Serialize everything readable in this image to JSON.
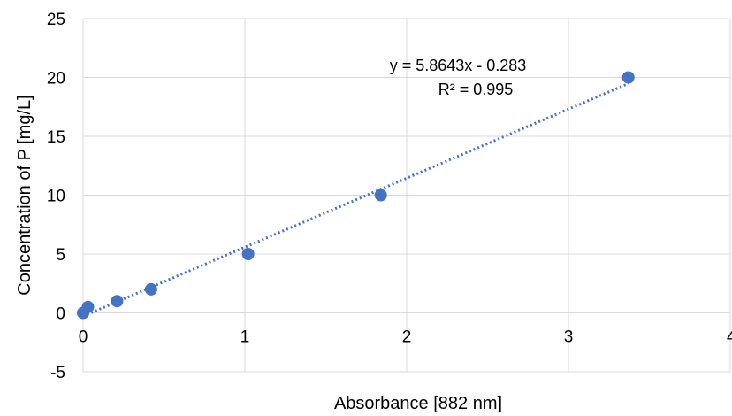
{
  "chart_data": {
    "type": "scatter",
    "title": "",
    "xlabel": "Absorbance [882 nm]",
    "ylabel": "Concentration of P [mg/L]",
    "xlim": [
      0,
      4
    ],
    "ylim": [
      -5,
      25
    ],
    "x_ticks": [
      "0",
      "1",
      "2",
      "3",
      "4"
    ],
    "y_ticks": [
      "-5",
      "0",
      "5",
      "10",
      "15",
      "20",
      "25"
    ],
    "grid": true,
    "legend": "none",
    "series": [
      {
        "color": "#4472C4",
        "points": [
          {
            "x": 0.0,
            "y": 0
          },
          {
            "x": 0.03,
            "y": 0.5
          },
          {
            "x": 0.21,
            "y": 1
          },
          {
            "x": 0.42,
            "y": 2
          },
          {
            "x": 1.02,
            "y": 5
          },
          {
            "x": 1.84,
            "y": 10
          },
          {
            "x": 3.37,
            "y": 20
          }
        ]
      }
    ],
    "trendline": {
      "type": "linear",
      "style": "dotted",
      "color": "#4472C4",
      "slope": 5.8643,
      "intercept": -0.283,
      "x_range": [
        0,
        3.37
      ],
      "equation": "y = 5.8643x - 0.283",
      "r_squared": "R² = 0.995"
    }
  }
}
